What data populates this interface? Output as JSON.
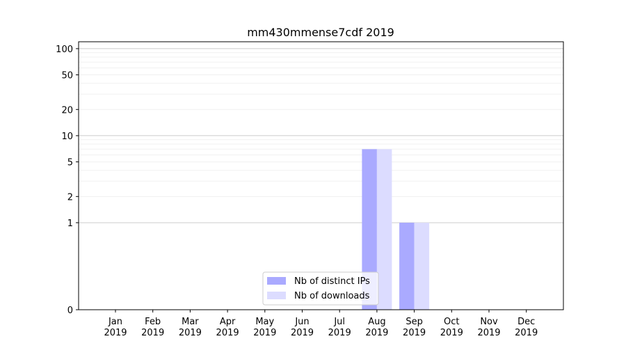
{
  "chart_data": {
    "type": "bar",
    "title": "mm430mmense7cdf 2019",
    "xlabel": "",
    "ylabel": "",
    "y_scale": "symlog",
    "ylim": [
      0,
      120
    ],
    "y_ticks": [
      0,
      1,
      2,
      5,
      10,
      20,
      50,
      100
    ],
    "grid": true,
    "legend_position": "lower-center",
    "categories": [
      {
        "month": "Jan",
        "year": "2019"
      },
      {
        "month": "Feb",
        "year": "2019"
      },
      {
        "month": "Mar",
        "year": "2019"
      },
      {
        "month": "Apr",
        "year": "2019"
      },
      {
        "month": "May",
        "year": "2019"
      },
      {
        "month": "Jun",
        "year": "2019"
      },
      {
        "month": "Jul",
        "year": "2019"
      },
      {
        "month": "Aug",
        "year": "2019"
      },
      {
        "month": "Sep",
        "year": "2019"
      },
      {
        "month": "Oct",
        "year": "2019"
      },
      {
        "month": "Nov",
        "year": "2019"
      },
      {
        "month": "Dec",
        "year": "2019"
      }
    ],
    "series": [
      {
        "name": "Nb of distinct IPs",
        "color": "#aaaaff",
        "values": [
          0,
          0,
          0,
          0,
          0,
          0,
          0,
          7,
          1,
          0,
          0,
          0
        ]
      },
      {
        "name": "Nb of downloads",
        "color": "#dcdcff",
        "values": [
          0,
          0,
          0,
          0,
          0,
          0,
          0,
          7,
          1,
          0,
          0,
          0
        ]
      }
    ]
  }
}
